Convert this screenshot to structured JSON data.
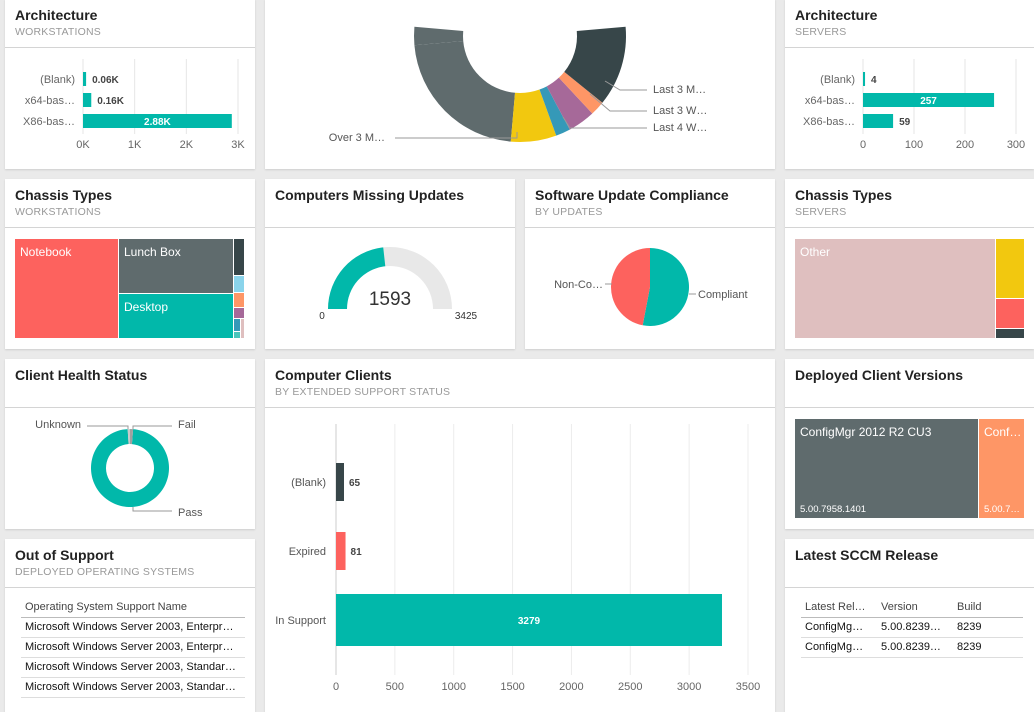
{
  "tiles": {
    "arch_ws": {
      "title": "Architecture",
      "subtitle": "WORKSTATIONS",
      "chart_data": {
        "type": "bar",
        "orientation": "horizontal",
        "categories": [
          "(Blank)",
          "x64-bas…",
          "X86-bas…"
        ],
        "values": [
          60,
          160,
          2880
        ],
        "data_labels": [
          "0.06K",
          "0.16K",
          "2.88K"
        ],
        "xlim": [
          0,
          3000
        ],
        "ticks": [
          "0K",
          "1K",
          "2K",
          "3K"
        ],
        "color": "#01b8aa"
      }
    },
    "donut_top": {
      "chart_data": {
        "type": "pie",
        "variant": "donut",
        "labels": [
          "Over 3 M…",
          "Last 3 M…",
          "Last 3 W…",
          "Last 4 W…"
        ],
        "colors": [
          "#5f6b6d",
          "#f2c80f",
          "#3599b8",
          "#a66999",
          "#fe9666",
          "#374649"
        ]
      }
    },
    "arch_srv": {
      "title": "Architecture",
      "subtitle": "SERVERS",
      "chart_data": {
        "type": "bar",
        "orientation": "horizontal",
        "categories": [
          "(Blank)",
          "x64-bas…",
          "X86-bas…"
        ],
        "values": [
          4,
          257,
          59
        ],
        "data_labels": [
          "4",
          "257",
          "59"
        ],
        "xlim": [
          0,
          300
        ],
        "ticks": [
          "0",
          "100",
          "200",
          "300"
        ],
        "color": "#01b8aa"
      }
    },
    "chassis_ws": {
      "title": "Chassis Types",
      "subtitle": "WORKSTATIONS",
      "cells": [
        "Notebook",
        "Lunch Box",
        "Desktop"
      ]
    },
    "missing_updates": {
      "title": "Computers Missing Updates",
      "chart_data": {
        "type": "gauge",
        "value": 1593,
        "min": 0,
        "max": 3425,
        "value_label": "1593",
        "min_label": "0",
        "max_label": "3425"
      }
    },
    "compliance": {
      "title": "Software Update Compliance",
      "subtitle": "BY UPDATES",
      "chart_data": {
        "type": "pie",
        "labels": [
          "Non-Co…",
          "Compliant"
        ],
        "colors": [
          "#fd625e",
          "#01b8aa"
        ]
      }
    },
    "chassis_srv": {
      "title": "Chassis Types",
      "subtitle": "SERVERS",
      "cells": [
        "Other"
      ]
    },
    "client_health": {
      "title": "Client Health Status",
      "chart_data": {
        "type": "pie",
        "variant": "donut",
        "labels": [
          "Unknown",
          "Fail",
          "Pass"
        ]
      }
    },
    "computer_clients": {
      "title": "Computer Clients",
      "subtitle": "BY EXTENDED SUPPORT STATUS",
      "chart_data": {
        "type": "bar",
        "orientation": "horizontal",
        "categories": [
          "(Blank)",
          "Expired",
          "In Support"
        ],
        "values": [
          65,
          81,
          3279
        ],
        "colors": [
          "#374649",
          "#fd625e",
          "#01b8aa"
        ],
        "xlim": [
          0,
          3500
        ],
        "ticks": [
          "0",
          "500",
          "1000",
          "1500",
          "2000",
          "2500",
          "3000",
          "3500"
        ]
      }
    },
    "deployed_versions": {
      "title": "Deployed Client Versions",
      "cells": [
        {
          "name": "ConfigMgr 2012 R2 CU3",
          "version": "5.00.7958.1401"
        },
        {
          "name": "Conf…",
          "version": "5.00.7…"
        }
      ]
    },
    "out_of_support": {
      "title": "Out of Support",
      "subtitle": "DEPLOYED OPERATING SYSTEMS",
      "header": "Operating System Support Name",
      "rows": [
        "Microsoft Windows Server 2003, Enterpr…",
        "Microsoft Windows Server 2003, Enterpr…",
        "Microsoft Windows Server 2003, Standar…",
        "Microsoft Windows Server 2003, Standar…"
      ]
    },
    "latest_sccm": {
      "title": "Latest SCCM Release",
      "headers": [
        "Latest Rel…",
        "Version",
        "Build"
      ],
      "rows": [
        [
          "ConfigMg…",
          "5.00.8239…",
          "8239"
        ],
        [
          "ConfigMg…",
          "5.00.8239…",
          "8239"
        ]
      ]
    }
  }
}
